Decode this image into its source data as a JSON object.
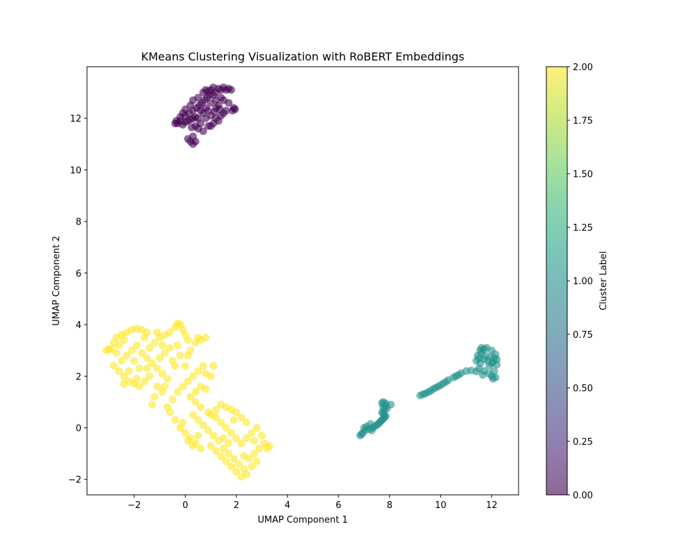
{
  "chart_data": {
    "type": "scatter",
    "title": "KMeans Clustering Visualization with RoBERT Embeddings",
    "xlabel": "UMAP Component 1",
    "ylabel": "UMAP Component 2",
    "xlim": [
      -3.85,
      13.05
    ],
    "ylim": [
      -2.6,
      14.0
    ],
    "x_ticks": [
      -2,
      0,
      2,
      4,
      6,
      8,
      10,
      12
    ],
    "x_tick_labels": [
      "−2",
      "0",
      "2",
      "4",
      "6",
      "8",
      "10",
      "12"
    ],
    "y_ticks": [
      -2,
      0,
      2,
      4,
      6,
      8,
      10,
      12
    ],
    "y_tick_labels": [
      "−2",
      "0",
      "2",
      "4",
      "6",
      "8",
      "10",
      "12"
    ],
    "grid": false,
    "marker_alpha": 0.6,
    "colorbar": {
      "label": "Cluster Label",
      "range": [
        0.0,
        2.0
      ],
      "ticks": [
        0.0,
        0.25,
        0.5,
        0.75,
        1.0,
        1.25,
        1.5,
        1.75,
        2.0
      ],
      "tick_labels": [
        "0.00",
        "0.25",
        "0.50",
        "0.75",
        "1.00",
        "1.25",
        "1.50",
        "1.75",
        "2.00"
      ],
      "colormap": "viridis",
      "colors": [
        "#440154",
        "#482878",
        "#3e4989",
        "#31688e",
        "#26828e",
        "#1f9e89",
        "#35b779",
        "#6ece58",
        "#b5de2b",
        "#fde725"
      ]
    },
    "series": [
      {
        "cluster": 0,
        "color": "#440154",
        "points": [
          [
            0.2,
            11.1
          ],
          [
            0.3,
            11.0
          ],
          [
            0.3,
            11.3
          ],
          [
            0.1,
            11.2
          ],
          [
            0.4,
            11.1
          ],
          [
            -0.2,
            11.9
          ],
          [
            -0.3,
            11.8
          ],
          [
            -0.1,
            11.75
          ],
          [
            0.0,
            11.85
          ],
          [
            0.1,
            11.9
          ],
          [
            0.2,
            11.95
          ],
          [
            0.3,
            12.0
          ],
          [
            0.4,
            12.05
          ],
          [
            -0.4,
            11.8
          ],
          [
            -0.35,
            11.9
          ],
          [
            -0.2,
            12.05
          ],
          [
            0.0,
            12.1
          ],
          [
            0.15,
            12.2
          ],
          [
            0.3,
            12.3
          ],
          [
            0.45,
            12.4
          ],
          [
            0.55,
            12.5
          ],
          [
            0.65,
            12.6
          ],
          [
            0.75,
            12.7
          ],
          [
            0.85,
            12.8
          ],
          [
            0.95,
            12.9
          ],
          [
            0.5,
            11.6
          ],
          [
            0.7,
            11.5
          ],
          [
            0.9,
            11.7
          ],
          [
            0.6,
            11.8
          ],
          [
            0.8,
            12.0
          ],
          [
            1.0,
            12.1
          ],
          [
            0.9,
            12.3
          ],
          [
            0.7,
            12.2
          ],
          [
            0.5,
            12.0
          ],
          [
            0.4,
            11.7
          ],
          [
            1.2,
            12.0
          ],
          [
            1.3,
            11.9
          ],
          [
            1.4,
            12.1
          ],
          [
            1.5,
            12.2
          ],
          [
            1.2,
            12.4
          ],
          [
            1.1,
            11.8
          ],
          [
            1.0,
            11.7
          ],
          [
            1.6,
            12.3
          ],
          [
            1.7,
            12.6
          ],
          [
            1.5,
            12.7
          ],
          [
            1.0,
            13.1
          ],
          [
            1.1,
            13.2
          ],
          [
            1.2,
            13.0
          ],
          [
            1.3,
            13.15
          ],
          [
            1.4,
            13.1
          ],
          [
            1.5,
            13.2
          ],
          [
            1.6,
            13.1
          ],
          [
            1.7,
            13.15
          ],
          [
            1.8,
            13.1
          ],
          [
            0.9,
            13.05
          ],
          [
            1.0,
            12.6
          ],
          [
            1.2,
            12.7
          ],
          [
            1.3,
            12.5
          ],
          [
            1.4,
            12.8
          ],
          [
            1.1,
            12.9
          ],
          [
            0.8,
            12.4
          ],
          [
            0.6,
            12.3
          ],
          [
            0.2,
            12.5
          ],
          [
            0.3,
            12.7
          ],
          [
            0.5,
            12.8
          ],
          [
            1.9,
            12.4
          ],
          [
            1.95,
            12.35
          ],
          [
            1.85,
            12.3
          ],
          [
            -0.1,
            12.2
          ],
          [
            0.0,
            12.35
          ],
          [
            0.7,
            13.0
          ],
          [
            0.8,
            13.1
          ],
          [
            1.15,
            12.25
          ],
          [
            1.35,
            12.35
          ],
          [
            0.25,
            11.65
          ]
        ]
      },
      {
        "cluster": 1,
        "color": "#21918c",
        "points": [
          [
            6.85,
            -0.3
          ],
          [
            6.9,
            -0.25
          ],
          [
            6.95,
            -0.2
          ],
          [
            7.0,
            0.0
          ],
          [
            7.05,
            -0.1
          ],
          [
            7.1,
            0.05
          ],
          [
            7.2,
            -0.05
          ],
          [
            7.3,
            -0.1
          ],
          [
            7.25,
            0.15
          ],
          [
            7.35,
            0.0
          ],
          [
            7.4,
            0.05
          ],
          [
            7.5,
            0.1
          ],
          [
            7.55,
            0.15
          ],
          [
            7.6,
            0.2
          ],
          [
            7.65,
            0.25
          ],
          [
            7.7,
            0.3
          ],
          [
            7.75,
            0.35
          ],
          [
            7.8,
            0.4
          ],
          [
            7.85,
            0.45
          ],
          [
            7.75,
            0.55
          ],
          [
            7.7,
            0.6
          ],
          [
            7.8,
            0.7
          ],
          [
            7.75,
            0.8
          ],
          [
            7.85,
            0.85
          ],
          [
            7.7,
            0.95
          ],
          [
            7.75,
            1.0
          ],
          [
            7.85,
            0.95
          ],
          [
            8.05,
            0.9
          ],
          [
            7.9,
            0.75
          ],
          [
            7.8,
            0.5
          ],
          [
            9.2,
            1.25
          ],
          [
            9.3,
            1.3
          ],
          [
            9.4,
            1.32
          ],
          [
            9.5,
            1.38
          ],
          [
            9.6,
            1.42
          ],
          [
            9.7,
            1.5
          ],
          [
            9.8,
            1.55
          ],
          [
            9.9,
            1.6
          ],
          [
            10.0,
            1.65
          ],
          [
            10.1,
            1.72
          ],
          [
            10.2,
            1.78
          ],
          [
            10.3,
            1.85
          ],
          [
            10.5,
            1.95
          ],
          [
            10.6,
            2.0
          ],
          [
            10.7,
            2.05
          ],
          [
            10.8,
            2.12
          ],
          [
            11.0,
            2.2
          ],
          [
            11.2,
            2.22
          ],
          [
            11.4,
            2.18
          ],
          [
            11.5,
            2.3
          ],
          [
            11.55,
            2.5
          ],
          [
            11.5,
            2.7
          ],
          [
            11.6,
            2.9
          ],
          [
            11.55,
            3.0
          ],
          [
            11.6,
            3.1
          ],
          [
            11.7,
            3.05
          ],
          [
            11.8,
            3.1
          ],
          [
            11.75,
            2.8
          ],
          [
            11.85,
            2.6
          ],
          [
            11.9,
            2.4
          ],
          [
            12.0,
            2.5
          ],
          [
            12.1,
            2.7
          ],
          [
            12.2,
            2.65
          ],
          [
            12.15,
            2.85
          ],
          [
            12.0,
            3.0
          ],
          [
            12.1,
            2.2
          ],
          [
            12.0,
            2.0
          ],
          [
            12.05,
            1.9
          ],
          [
            12.15,
            1.95
          ],
          [
            11.9,
            2.1
          ],
          [
            11.7,
            2.2
          ],
          [
            11.65,
            2.05
          ],
          [
            11.95,
            2.75
          ],
          [
            12.05,
            2.55
          ],
          [
            11.4,
            2.6
          ],
          [
            11.45,
            2.8
          ],
          [
            11.7,
            2.65
          ],
          [
            12.2,
            2.45
          ]
        ]
      },
      {
        "cluster": 2,
        "color": "#fde725",
        "points": [
          [
            -3.1,
            3.0
          ],
          [
            -2.9,
            3.05
          ],
          [
            -2.8,
            3.3
          ],
          [
            -2.7,
            3.5
          ],
          [
            -2.5,
            3.6
          ],
          [
            -2.3,
            3.7
          ],
          [
            -2.1,
            3.8
          ],
          [
            -1.9,
            3.85
          ],
          [
            -1.7,
            3.8
          ],
          [
            -1.5,
            3.7
          ],
          [
            -2.8,
            2.4
          ],
          [
            -2.6,
            2.2
          ],
          [
            -2.4,
            2.0
          ],
          [
            -2.2,
            1.8
          ],
          [
            -2.0,
            1.7
          ],
          [
            -1.8,
            1.6
          ],
          [
            -2.5,
            2.6
          ],
          [
            -2.3,
            2.8
          ],
          [
            -2.1,
            3.0
          ],
          [
            -1.9,
            3.2
          ],
          [
            -1.7,
            2.9
          ],
          [
            -1.5,
            2.7
          ],
          [
            -1.3,
            2.5
          ],
          [
            -1.1,
            2.3
          ],
          [
            -0.9,
            2.1
          ],
          [
            -0.7,
            1.9
          ],
          [
            -1.2,
            3.3
          ],
          [
            -1.0,
            3.5
          ],
          [
            -0.8,
            3.6
          ],
          [
            -0.6,
            3.7
          ],
          [
            -0.4,
            3.9
          ],
          [
            -0.3,
            4.05
          ],
          [
            -0.2,
            4.0
          ],
          [
            -0.1,
            3.8
          ],
          [
            0.0,
            3.6
          ],
          [
            0.1,
            3.4
          ],
          [
            -1.4,
            2.0
          ],
          [
            -1.6,
            1.8
          ],
          [
            -1.8,
            2.3
          ],
          [
            -2.0,
            2.6
          ],
          [
            -2.6,
            3.2
          ],
          [
            -2.4,
            3.4
          ],
          [
            -1.1,
            1.6
          ],
          [
            -0.9,
            1.4
          ],
          [
            -1.2,
            1.2
          ],
          [
            -1.3,
            0.9
          ],
          [
            -0.7,
            0.8
          ],
          [
            -0.5,
            1.1
          ],
          [
            -0.3,
            1.4
          ],
          [
            -0.1,
            1.6
          ],
          [
            0.1,
            1.8
          ],
          [
            0.3,
            2.0
          ],
          [
            0.5,
            2.2
          ],
          [
            0.7,
            2.4
          ],
          [
            0.6,
            3.4
          ],
          [
            0.8,
            3.5
          ],
          [
            0.2,
            3.0
          ],
          [
            -0.2,
            2.8
          ],
          [
            -0.5,
            2.6
          ],
          [
            -0.8,
            2.9
          ],
          [
            0.0,
            2.4
          ],
          [
            0.2,
            1.2
          ],
          [
            0.4,
            1.0
          ],
          [
            0.6,
            0.8
          ],
          [
            0.8,
            1.5
          ],
          [
            1.0,
            2.0
          ],
          [
            1.1,
            2.4
          ],
          [
            -0.6,
            0.6
          ],
          [
            -0.4,
            0.3
          ],
          [
            -0.2,
            0.0
          ],
          [
            0.0,
            -0.2
          ],
          [
            0.2,
            -0.4
          ],
          [
            0.4,
            -0.6
          ],
          [
            0.6,
            -0.8
          ],
          [
            0.3,
            0.5
          ],
          [
            0.5,
            0.3
          ],
          [
            0.7,
            0.1
          ],
          [
            0.9,
            -0.1
          ],
          [
            1.1,
            -0.3
          ],
          [
            1.0,
            0.5
          ],
          [
            1.2,
            0.7
          ],
          [
            1.4,
            0.9
          ],
          [
            1.6,
            0.8
          ],
          [
            1.8,
            0.7
          ],
          [
            2.0,
            0.6
          ],
          [
            2.2,
            0.4
          ],
          [
            1.3,
            -0.5
          ],
          [
            1.5,
            -0.8
          ],
          [
            1.7,
            -1.0
          ],
          [
            1.9,
            -1.2
          ],
          [
            2.1,
            -1.4
          ],
          [
            2.3,
            -1.6
          ],
          [
            2.2,
            -1.9
          ],
          [
            2.0,
            -1.7
          ],
          [
            1.8,
            -1.5
          ],
          [
            1.6,
            -1.3
          ],
          [
            1.4,
            -1.1
          ],
          [
            1.2,
            -0.9
          ],
          [
            2.5,
            -1.2
          ],
          [
            2.7,
            -1.0
          ],
          [
            2.9,
            -0.8
          ],
          [
            3.1,
            -0.6
          ],
          [
            3.2,
            -0.8
          ],
          [
            3.0,
            -0.3
          ],
          [
            2.8,
            0.0
          ],
          [
            2.6,
            -0.2
          ],
          [
            2.4,
            -0.4
          ],
          [
            2.2,
            -0.6
          ],
          [
            2.0,
            -0.4
          ],
          [
            1.8,
            -0.2
          ],
          [
            1.6,
            0.0
          ],
          [
            1.4,
            0.2
          ],
          [
            1.2,
            0.4
          ],
          [
            0.9,
            0.6
          ],
          [
            0.3,
            -0.7
          ],
          [
            0.1,
            -0.5
          ],
          [
            -0.1,
            0.2
          ],
          [
            0.5,
            -0.3
          ],
          [
            1.0,
            -0.7
          ],
          [
            2.4,
            0.2
          ],
          [
            2.6,
            -1.5
          ],
          [
            2.8,
            -1.3
          ],
          [
            2.4,
            -1.8
          ],
          [
            1.9,
            0.3
          ],
          [
            2.3,
            -1.1
          ],
          [
            -2.7,
            2.9
          ],
          [
            -3.0,
            3.05
          ],
          [
            -1.6,
            3.5
          ],
          [
            -1.4,
            3.1
          ],
          [
            -1.0,
            2.7
          ],
          [
            -0.6,
            3.1
          ],
          [
            -0.4,
            2.4
          ],
          [
            -0.3,
            3.2
          ],
          [
            0.4,
            3.3
          ],
          [
            0.5,
            3.5
          ],
          [
            0.1,
            2.8
          ],
          [
            -2.2,
            2.2
          ],
          [
            -1.9,
            1.9
          ],
          [
            -2.4,
            1.7
          ],
          [
            -1.5,
            2.3
          ],
          [
            -0.9,
            3.2
          ],
          [
            -1.1,
            3.7
          ],
          [
            0.8,
            2.1
          ],
          [
            0.6,
            1.6
          ],
          [
            0.4,
            1.4
          ],
          [
            -0.8,
            1.6
          ],
          [
            1.5,
            -0.4
          ],
          [
            2.7,
            -0.5
          ],
          [
            3.3,
            -0.7
          ],
          [
            1.7,
            -0.6
          ]
        ]
      }
    ]
  }
}
